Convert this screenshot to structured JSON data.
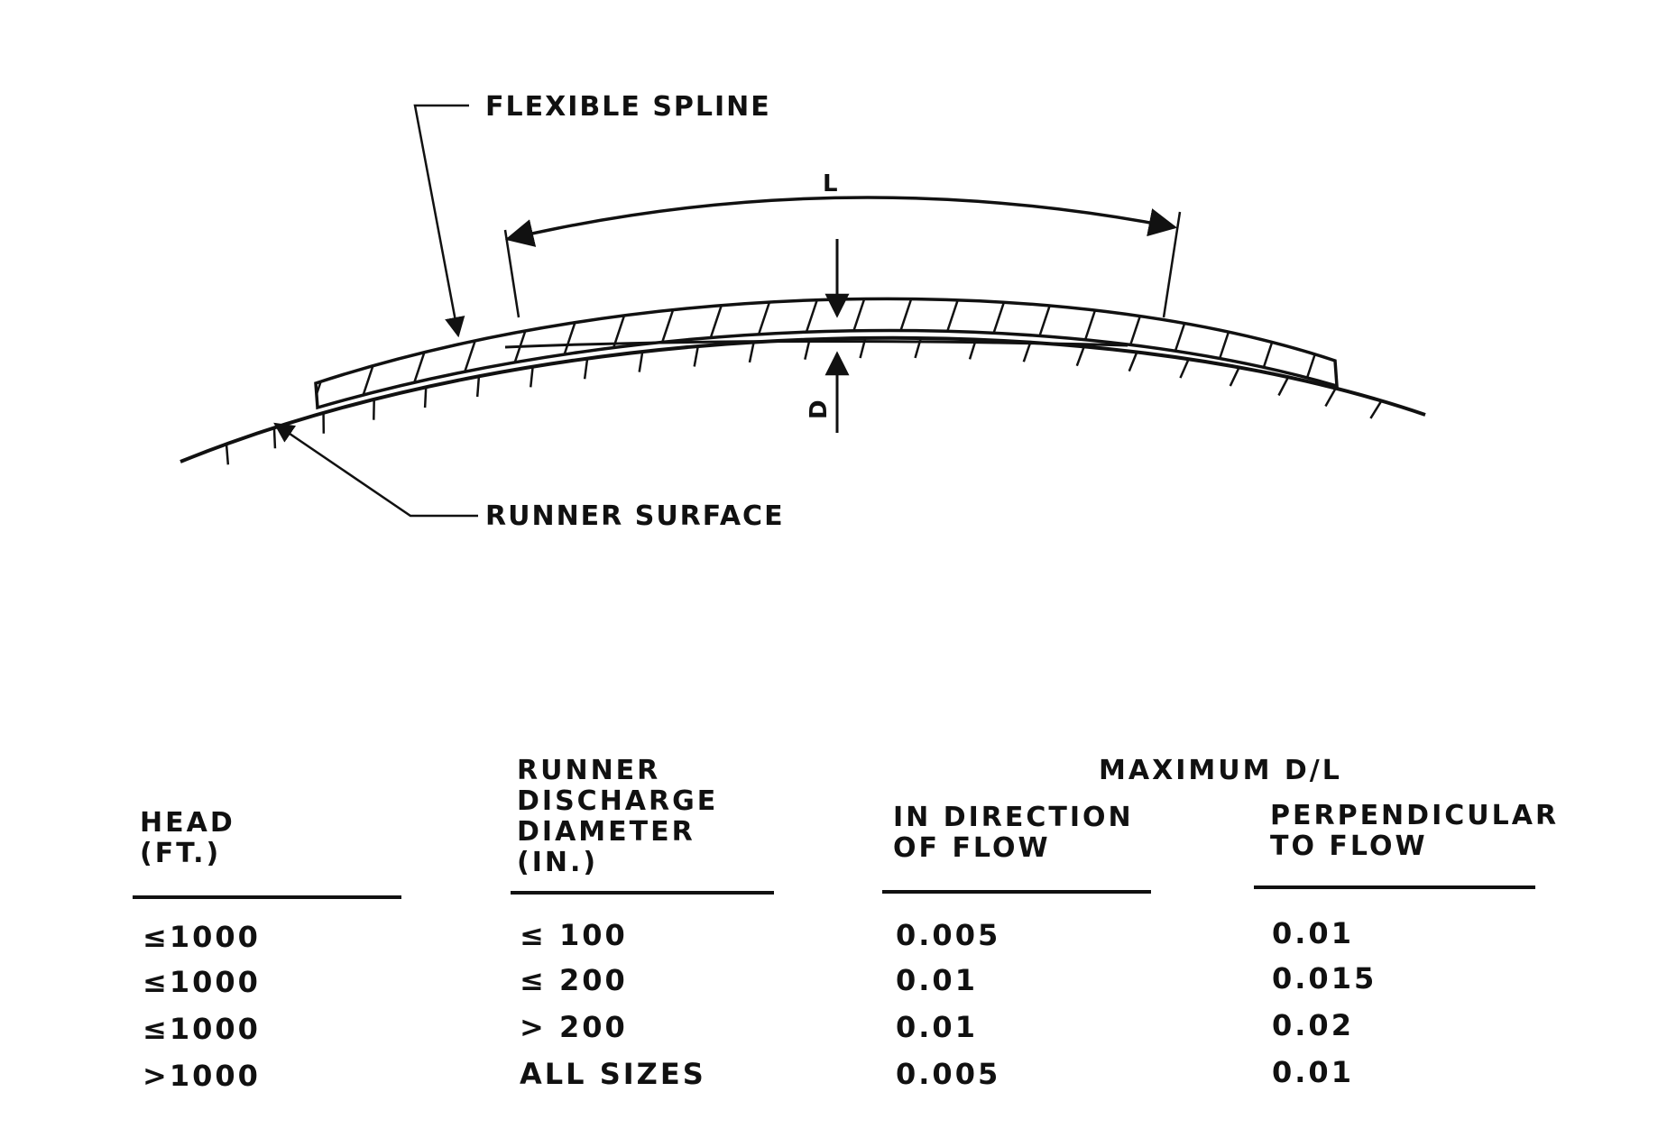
{
  "diagram": {
    "label_flexible_spline": "FLEXIBLE SPLINE",
    "label_runner_surface": "RUNNER SURFACE",
    "label_length": "L",
    "label_deviation": "D"
  },
  "table": {
    "group_header": "MAXIMUM D/L",
    "headers": [
      "HEAD\n(FT.)",
      "RUNNER\nDISCHARGE\nDIAMETER\n(IN.)",
      "IN DIRECTION\nOF FLOW",
      "PERPENDICULAR\nTO FLOW"
    ],
    "rows": [
      [
        "≤1000",
        "≤ 100",
        "0.005",
        "0.01"
      ],
      [
        "≤1000",
        "≤ 200",
        "0.01",
        "0.015"
      ],
      [
        "≤1000",
        "> 200",
        "0.01",
        "0.02"
      ],
      [
        ">1000",
        "ALL SIZES",
        "0.005",
        "0.01"
      ]
    ]
  }
}
